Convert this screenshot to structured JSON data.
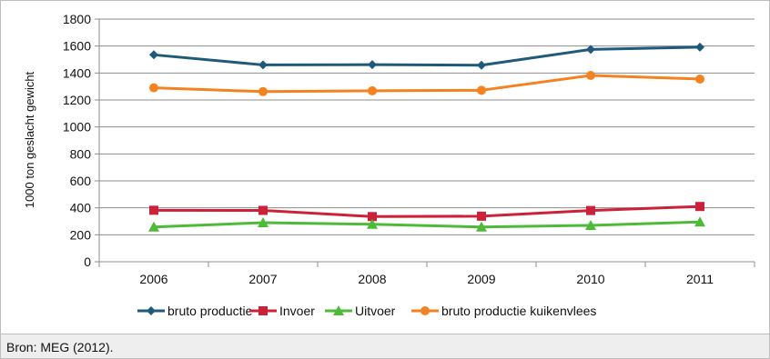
{
  "chart_data": {
    "type": "line",
    "ylabel": "1000 ton geslacht gewicht",
    "xlabel": "",
    "ylim": [
      0,
      1800
    ],
    "y_ticks": [
      0,
      200,
      400,
      600,
      800,
      1000,
      1200,
      1400,
      1600,
      1800
    ],
    "categories": [
      "2006",
      "2007",
      "2008",
      "2009",
      "2010",
      "2011"
    ],
    "grid": "horizontal major gridlines on",
    "legend_position": "bottom",
    "series": [
      {
        "name": "bruto productie",
        "color": "#1f5a7a",
        "marker": "diamond",
        "values": [
          1535,
          1460,
          1462,
          1458,
          1575,
          1592
        ]
      },
      {
        "name": "Invoer",
        "color": "#cc2239",
        "marker": "square",
        "values": [
          382,
          381,
          335,
          338,
          380,
          410
        ]
      },
      {
        "name": "Uitvoer",
        "color": "#4dbb38",
        "marker": "triangle",
        "values": [
          258,
          290,
          278,
          258,
          270,
          295
        ]
      },
      {
        "name": "bruto productie kuikenvlees",
        "color": "#f58220",
        "marker": "circle",
        "values": [
          1290,
          1262,
          1268,
          1272,
          1382,
          1355
        ]
      }
    ]
  },
  "source": {
    "text": "Bron: MEG (2012)."
  }
}
